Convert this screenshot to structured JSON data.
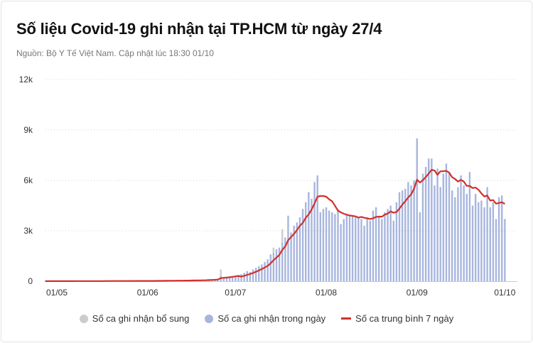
{
  "header": {
    "title": "Số liệu Covid-19 ghi nhận tại TP.HCM từ ngày 27/4",
    "subtitle": "Nguồn: Bộ Y Tế Việt Nam. Cập nhật lúc 18:30 01/10"
  },
  "colors": {
    "daily": "#a7b6de",
    "supplemental": "#cccccc",
    "avg": "#d1302b",
    "grid": "#d5d5d5"
  },
  "chart_data": {
    "type": "bar",
    "title": "Số liệu Covid-19 ghi nhận tại TP.HCM từ ngày 27/4",
    "start_date": "27/4",
    "ylim": [
      0,
      12000
    ],
    "y_ticks": [
      {
        "v": 0,
        "label": "0"
      },
      {
        "v": 3000,
        "label": "3k"
      },
      {
        "v": 6000,
        "label": "6k"
      },
      {
        "v": 9000,
        "label": "9k"
      },
      {
        "v": 12000,
        "label": "12k"
      }
    ],
    "x_ticks": [
      {
        "day": 4,
        "label": "01/05"
      },
      {
        "day": 35,
        "label": "01/06"
      },
      {
        "day": 65,
        "label": "01/07"
      },
      {
        "day": 96,
        "label": "01/08"
      },
      {
        "day": 127,
        "label": "01/09"
      },
      {
        "day": 157,
        "label": "01/10"
      }
    ],
    "legend": [
      "Số ca ghi nhận bổ sung",
      "Số ca ghi nhận trong ngày",
      "Số ca trung bình 7 ngày"
    ],
    "legend_placement": "bottom",
    "series": [
      {
        "name": "Số ca ghi nhận trong ngày",
        "values": [
          5,
          3,
          8,
          2,
          4,
          6,
          3,
          10,
          5,
          8,
          2,
          12,
          6,
          9,
          15,
          7,
          10,
          5,
          14,
          8,
          11,
          20,
          9,
          13,
          16,
          10,
          18,
          12,
          22,
          15,
          9,
          25,
          14,
          18,
          20,
          15,
          22,
          18,
          30,
          25,
          20,
          35,
          28,
          40,
          32,
          45,
          38,
          30,
          50,
          42,
          55,
          60,
          48,
          70,
          65,
          80,
          90,
          110,
          120,
          140,
          300,
          180,
          200,
          220,
          260,
          300,
          350,
          420,
          500,
          600,
          550,
          700,
          800,
          900,
          1000,
          1150,
          1300,
          1600,
          1700,
          1900,
          2000,
          2300,
          2600,
          3900,
          2900,
          3300,
          3500,
          3800,
          4300,
          4700,
          5300,
          4900,
          5900,
          6300,
          4100,
          4300,
          4400,
          4200,
          4100,
          4000,
          4300,
          3400,
          3700,
          4000,
          3900,
          3900,
          3800,
          3800,
          3700,
          3300,
          3800,
          3600,
          4200,
          4400,
          3900,
          3700,
          4100,
          4300,
          4500,
          3600,
          4700,
          5300,
          5400,
          5500,
          5900,
          5700,
          6000,
          8500,
          4100,
          6400,
          6800,
          7300,
          7300,
          5700,
          6700,
          5600,
          6400,
          7000,
          6500,
          5400,
          5000,
          5600,
          6300,
          5700,
          5200,
          6500,
          4500,
          5200,
          4700,
          4800,
          4400,
          5600,
          4400,
          4700,
          3700,
          5000,
          5100,
          3700
        ]
      },
      {
        "name": "Số ca ghi nhận bổ sung",
        "values_by_day": {
          "60": 400,
          "81": 800,
          "78": 300
        }
      },
      {
        "name": "Số ca trung bình 7 ngày",
        "derived": "7-day rolling mean of daily + supplemental"
      }
    ]
  }
}
